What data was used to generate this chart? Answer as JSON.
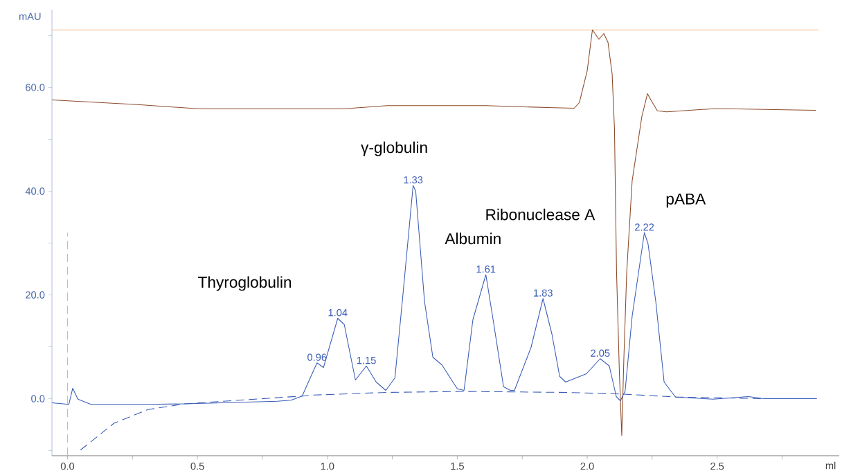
{
  "chart_data": {
    "type": "line",
    "xlabel": "ml",
    "ylabel": "mAU",
    "xlim": [
      -0.06,
      2.97
    ],
    "ylim": [
      -11,
      75
    ],
    "xticks": [
      {
        "value": 0,
        "label": "0.0"
      },
      {
        "value": 0.25,
        "label": null
      },
      {
        "value": 0.5,
        "label": "0.5"
      },
      {
        "value": 0.75,
        "label": null
      },
      {
        "value": 1.0,
        "label": "1.0"
      },
      {
        "value": 1.25,
        "label": null
      },
      {
        "value": 1.5,
        "label": "1.5"
      },
      {
        "value": 1.75,
        "label": null
      },
      {
        "value": 2.0,
        "label": "2.0"
      },
      {
        "value": 2.25,
        "label": null
      },
      {
        "value": 2.5,
        "label": "2.5"
      },
      {
        "value": 2.75,
        "label": null
      }
    ],
    "yticks": [
      {
        "value": -10,
        "label": null
      },
      {
        "value": 0,
        "label": "0.0"
      },
      {
        "value": 10,
        "label": null
      },
      {
        "value": 20,
        "label": "20.0"
      },
      {
        "value": 30,
        "label": null
      },
      {
        "value": 40,
        "label": "40.0"
      },
      {
        "value": 50,
        "label": null
      },
      {
        "value": 60,
        "label": "60.0"
      },
      {
        "value": 70,
        "label": null
      }
    ],
    "marker": "none",
    "series": [
      {
        "color": "#f7b98c",
        "x": [
          -0.06,
          2.89
        ],
        "values": [
          71.1,
          71.1
        ]
      },
      {
        "color": "#8b4a2b",
        "x": [
          -0.06,
          0.27,
          0.5,
          1.07,
          1.23,
          1.61,
          1.87,
          1.95,
          1.97,
          2.0,
          2.02,
          2.045,
          2.064,
          2.08,
          2.096,
          2.105,
          2.113,
          2.124,
          2.133,
          2.141,
          2.152,
          2.173,
          2.21,
          2.232,
          2.245,
          2.27,
          2.306,
          2.485,
          2.54,
          2.76,
          2.88
        ],
        "values": [
          57.6,
          56.7,
          55.9,
          55.9,
          56.5,
          56.5,
          56.1,
          56.0,
          57.1,
          63.2,
          71.1,
          69.3,
          70.4,
          68.7,
          62.6,
          52.0,
          24.3,
          4.8,
          -7.1,
          7.6,
          24.3,
          42.0,
          54.3,
          58.8,
          57.6,
          55.5,
          55.3,
          55.9,
          55.9,
          55.7,
          55.6
        ]
      },
      {
        "color": "#e2a6d6",
        "line_style": "dashed",
        "x": [
          0,
          0
        ],
        "values": [
          -11,
          32
        ]
      },
      {
        "color": "#3a5cb8",
        "line_style": "dashed",
        "x": [
          0.05,
          0.18,
          0.31,
          0.45,
          0.903,
          0.948,
          1.225,
          1.518,
          1.917,
          2.13,
          2.35,
          2.68
        ],
        "values": [
          -9.9,
          -4.7,
          -2.1,
          -1.0,
          0.5,
          0.7,
          1.2,
          1.4,
          1.2,
          0.9,
          0.3,
          0.0
        ]
      },
      {
        "color": "#3a5cb8",
        "x": [
          -0.06,
          0.005,
          0.02,
          0.04,
          0.09,
          0.31,
          0.45,
          0.807,
          0.86,
          0.903,
          0.96,
          0.985,
          1.04,
          1.065,
          1.108,
          1.15,
          1.188,
          1.225,
          1.26,
          1.29,
          1.33,
          1.34,
          1.374,
          1.406,
          1.441,
          1.5,
          1.526,
          1.56,
          1.61,
          1.638,
          1.678,
          1.704,
          1.72,
          1.784,
          1.83,
          1.864,
          1.894,
          1.917,
          1.997,
          2.05,
          2.085,
          2.112,
          2.128,
          2.146,
          2.173,
          2.22,
          2.234,
          2.264,
          2.296,
          2.34,
          2.485,
          2.62,
          2.68,
          2.884
        ],
        "values": [
          -0.8,
          -1.1,
          2.0,
          -0.1,
          -1.1,
          -1.1,
          -1.0,
          -0.5,
          -0.3,
          0.5,
          6.9,
          6.0,
          15.5,
          14.3,
          3.6,
          6.3,
          3.2,
          1.6,
          4.0,
          19.6,
          41.1,
          40.0,
          18.7,
          8.0,
          6.5,
          1.9,
          1.6,
          15.2,
          23.9,
          15.2,
          2.3,
          1.6,
          1.6,
          9.9,
          19.3,
          12.5,
          4.3,
          3.2,
          4.8,
          7.7,
          6.3,
          0.4,
          -0.4,
          1.5,
          15.9,
          32.0,
          29.9,
          18.7,
          3.2,
          0.3,
          -0.1,
          0.4,
          0.0,
          0.0
        ]
      }
    ],
    "annotations": [
      {
        "text": "0.96",
        "x": 0.96,
        "y": 6.9
      },
      {
        "text": "1.04",
        "x": 1.04,
        "y": 15.5
      },
      {
        "text": "1.15",
        "x": 1.15,
        "y": 6.3
      },
      {
        "text": "1.33",
        "x": 1.33,
        "y": 41.1
      },
      {
        "text": "1.61",
        "x": 1.61,
        "y": 23.9
      },
      {
        "text": "1.83",
        "x": 1.83,
        "y": 19.3
      },
      {
        "text": "2.05",
        "x": 2.05,
        "y": 7.7
      },
      {
        "text": "2.22",
        "x": 2.22,
        "y": 32.0
      },
      "Thyroglobulin",
      "γ-globulin",
      "Albumin",
      "Ribonuclease A",
      "pABA"
    ]
  }
}
